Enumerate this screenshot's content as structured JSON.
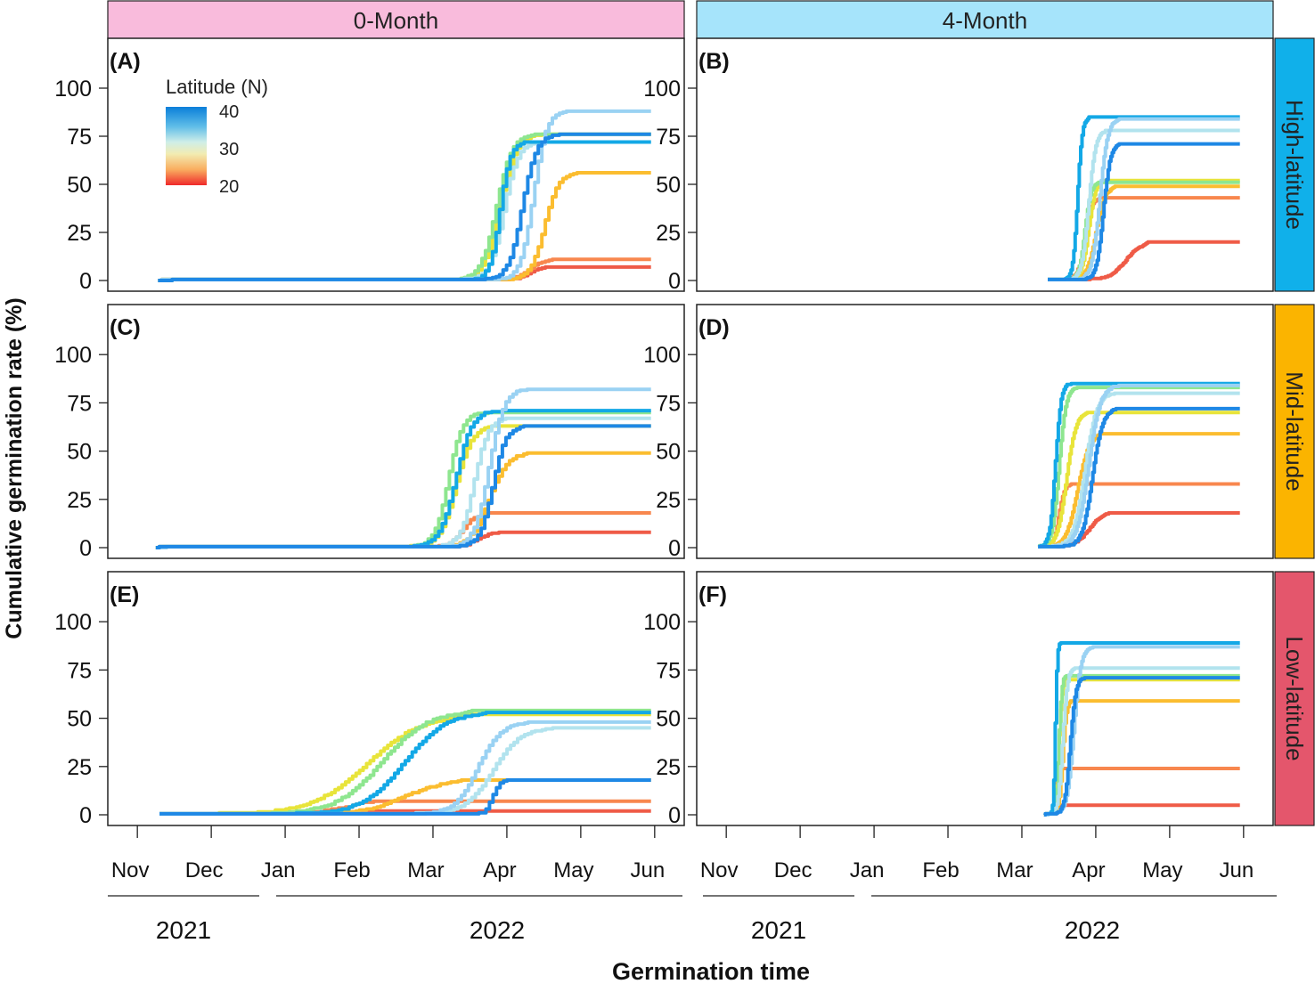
{
  "figure": {
    "ylabel": "Cumulative germination rate (%)",
    "xlabel": "Germination time",
    "legend": {
      "title": "Latitude (N)",
      "ticks": [
        "40",
        "30",
        "20"
      ]
    },
    "columns": [
      {
        "label": "0-Month",
        "color": "#f9bbdc"
      },
      {
        "label": "4-Month",
        "color": "#a6e4fb"
      }
    ],
    "rows": [
      {
        "label": "High-latitude",
        "color": "#10b0ea"
      },
      {
        "label": "Mid-latitude",
        "color": "#fbb400"
      },
      {
        "label": "Low-latitude",
        "color": "#e4566c"
      }
    ],
    "months": [
      "Nov",
      "Dec",
      "Jan",
      "Feb",
      "Mar",
      "Apr",
      "May",
      "Jun"
    ],
    "years": [
      "2021",
      "2022"
    ],
    "yticks": [
      "0",
      "25",
      "50",
      "75",
      "100"
    ]
  },
  "chart_data": [
    {
      "type": "line",
      "panel": "(A)",
      "column": "0-Month",
      "row": "High-latitude",
      "x_unit": "months since Nov 1 2021",
      "ylim": [
        0,
        125
      ],
      "xlim": [
        -0.4,
        7.4
      ],
      "series": [
        {
          "name": "lat-40a",
          "color": "#1e88e5",
          "start": 0.28,
          "end": 6.95,
          "final": 76,
          "mid": 5.2,
          "width": 0.3
        },
        {
          "name": "lat-39",
          "color": "#9ad2f3",
          "start": 0.28,
          "end": 6.95,
          "final": 88,
          "mid": 5.35,
          "width": 0.28
        },
        {
          "name": "lat-38",
          "color": "#13a8e6",
          "start": 0.28,
          "end": 6.95,
          "final": 72,
          "mid": 4.9,
          "width": 0.22
        },
        {
          "name": "lat-36",
          "color": "#b2e3ee",
          "start": 0.28,
          "end": 6.95,
          "final": 72,
          "mid": 4.95,
          "width": 0.3
        },
        {
          "name": "lat-33",
          "color": "#8ee68f",
          "start": 0.28,
          "end": 6.95,
          "final": 76,
          "mid": 4.85,
          "width": 0.33
        },
        {
          "name": "lat-31",
          "color": "#e8e43a",
          "start": 0.28,
          "end": 6.95,
          "final": 76,
          "mid": 4.9,
          "width": 0.35
        },
        {
          "name": "lat-27",
          "color": "#fbbd30",
          "start": 0.28,
          "end": 6.95,
          "final": 56,
          "mid": 5.5,
          "width": 0.3
        },
        {
          "name": "lat-24",
          "color": "#f8874e",
          "start": 0.28,
          "end": 6.95,
          "final": 11,
          "mid": 5.3,
          "width": 0.35
        },
        {
          "name": "lat-21",
          "color": "#ef5b47",
          "start": 0.28,
          "end": 6.95,
          "final": 7,
          "mid": 5.3,
          "width": 0.3
        }
      ]
    },
    {
      "type": "line",
      "panel": "(B)",
      "column": "4-Month",
      "row": "High-latitude",
      "x_unit": "months since Nov 1 2021",
      "ylim": [
        0,
        125
      ],
      "xlim": [
        -0.4,
        7.4
      ],
      "series": [
        {
          "name": "lat-40a",
          "color": "#1e88e5",
          "start": 4.35,
          "end": 6.95,
          "final": 71,
          "mid": 5.1,
          "width": 0.15
        },
        {
          "name": "lat-39",
          "color": "#9ad2f3",
          "start": 4.35,
          "end": 6.95,
          "final": 84,
          "mid": 5.05,
          "width": 0.17
        },
        {
          "name": "lat-38",
          "color": "#13a8e6",
          "start": 4.35,
          "end": 6.95,
          "final": 85,
          "mid": 4.75,
          "width": 0.1
        },
        {
          "name": "lat-36",
          "color": "#b2e3ee",
          "start": 4.35,
          "end": 6.95,
          "final": 78,
          "mid": 4.9,
          "width": 0.15
        },
        {
          "name": "lat-33",
          "color": "#8ee68f",
          "start": 4.35,
          "end": 6.95,
          "final": 51,
          "mid": 4.85,
          "width": 0.13
        },
        {
          "name": "lat-31",
          "color": "#e8e43a",
          "start": 4.35,
          "end": 6.95,
          "final": 52,
          "mid": 4.9,
          "width": 0.15
        },
        {
          "name": "lat-27",
          "color": "#fbbd30",
          "start": 4.35,
          "end": 6.95,
          "final": 49,
          "mid": 5.0,
          "width": 0.2
        },
        {
          "name": "lat-24",
          "color": "#f8874e",
          "start": 4.35,
          "end": 6.95,
          "final": 43,
          "mid": 4.85,
          "width": 0.15
        },
        {
          "name": "lat-21",
          "color": "#ef5b47",
          "start": 4.35,
          "end": 6.95,
          "final": 20,
          "mid": 5.4,
          "width": 0.35
        }
      ]
    },
    {
      "type": "line",
      "panel": "(C)",
      "column": "0-Month",
      "row": "Mid-latitude",
      "x_unit": "months since Nov 1 2021",
      "ylim": [
        0,
        125
      ],
      "xlim": [
        -0.4,
        7.4
      ],
      "series": [
        {
          "name": "lat-40a",
          "color": "#1e88e5",
          "start": 0.25,
          "end": 6.95,
          "final": 63,
          "mid": 4.8,
          "width": 0.28
        },
        {
          "name": "lat-39",
          "color": "#9ad2f3",
          "start": 0.25,
          "end": 6.95,
          "final": 82,
          "mid": 4.75,
          "width": 0.32
        },
        {
          "name": "lat-38",
          "color": "#13a8e6",
          "start": 0.25,
          "end": 6.95,
          "final": 71,
          "mid": 4.3,
          "width": 0.35
        },
        {
          "name": "lat-36",
          "color": "#b2e3ee",
          "start": 0.25,
          "end": 6.95,
          "final": 67,
          "mid": 4.55,
          "width": 0.3
        },
        {
          "name": "lat-33",
          "color": "#8ee68f",
          "start": 0.25,
          "end": 6.95,
          "final": 70,
          "mid": 4.2,
          "width": 0.3
        },
        {
          "name": "lat-31",
          "color": "#e8e43a",
          "start": 0.25,
          "end": 6.95,
          "final": 63,
          "mid": 4.3,
          "width": 0.35
        },
        {
          "name": "lat-27",
          "color": "#fbbd30",
          "start": 0.25,
          "end": 6.95,
          "final": 49,
          "mid": 4.75,
          "width": 0.4
        },
        {
          "name": "lat-24",
          "color": "#f8874e",
          "start": 0.25,
          "end": 6.95,
          "final": 18,
          "mid": 4.4,
          "width": 0.3
        },
        {
          "name": "lat-21",
          "color": "#ef5b47",
          "start": 0.25,
          "end": 6.95,
          "final": 8,
          "mid": 4.6,
          "width": 0.3
        }
      ]
    },
    {
      "type": "line",
      "panel": "(D)",
      "column": "4-Month",
      "row": "Mid-latitude",
      "x_unit": "months since Nov 1 2021",
      "ylim": [
        0,
        125
      ],
      "xlim": [
        -0.4,
        7.4
      ],
      "series": [
        {
          "name": "lat-40a",
          "color": "#1e88e5",
          "start": 4.22,
          "end": 6.95,
          "final": 72,
          "mid": 4.95,
          "width": 0.22
        },
        {
          "name": "lat-39",
          "color": "#9ad2f3",
          "start": 4.22,
          "end": 6.95,
          "final": 84,
          "mid": 4.9,
          "width": 0.25
        },
        {
          "name": "lat-38",
          "color": "#13a8e6",
          "start": 4.22,
          "end": 6.95,
          "final": 85,
          "mid": 4.45,
          "width": 0.12
        },
        {
          "name": "lat-36",
          "color": "#b2e3ee",
          "start": 4.22,
          "end": 6.95,
          "final": 80,
          "mid": 4.85,
          "width": 0.25
        },
        {
          "name": "lat-33",
          "color": "#8ee68f",
          "start": 4.22,
          "end": 6.95,
          "final": 83,
          "mid": 4.5,
          "width": 0.15
        },
        {
          "name": "lat-31",
          "color": "#e8e43a",
          "start": 4.22,
          "end": 6.95,
          "final": 70,
          "mid": 4.6,
          "width": 0.2
        },
        {
          "name": "lat-27",
          "color": "#fbbd30",
          "start": 4.22,
          "end": 6.95,
          "final": 59,
          "mid": 4.75,
          "width": 0.25
        },
        {
          "name": "lat-24",
          "color": "#f8874e",
          "start": 4.22,
          "end": 6.95,
          "final": 33,
          "mid": 4.5,
          "width": 0.12
        },
        {
          "name": "lat-21",
          "color": "#ef5b47",
          "start": 4.22,
          "end": 6.95,
          "final": 18,
          "mid": 4.9,
          "width": 0.3
        }
      ]
    },
    {
      "type": "line",
      "panel": "(E)",
      "column": "0-Month",
      "row": "Low-latitude",
      "x_unit": "months since Nov 1 2021",
      "ylim": [
        0,
        125
      ],
      "xlim": [
        -0.4,
        7.4
      ],
      "series": [
        {
          "name": "lat-40a",
          "color": "#1e88e5",
          "start": 0.3,
          "end": 6.95,
          "final": 18,
          "mid": 4.8,
          "width": 0.15
        },
        {
          "name": "lat-39",
          "color": "#9ad2f3",
          "start": 0.3,
          "end": 6.95,
          "final": 48,
          "mid": 4.6,
          "width": 0.5
        },
        {
          "name": "lat-38",
          "color": "#13a8e6",
          "start": 0.3,
          "end": 6.95,
          "final": 53,
          "mid": 3.6,
          "width": 0.9
        },
        {
          "name": "lat-36",
          "color": "#b2e3ee",
          "start": 0.3,
          "end": 6.95,
          "final": 45,
          "mid": 4.8,
          "width": 0.6
        },
        {
          "name": "lat-33",
          "color": "#8ee68f",
          "start": 0.3,
          "end": 6.95,
          "final": 54,
          "mid": 3.3,
          "width": 1.0
        },
        {
          "name": "lat-31",
          "color": "#e8e43a",
          "start": 0.3,
          "end": 6.95,
          "final": 52,
          "mid": 3.1,
          "width": 1.2
        },
        {
          "name": "lat-27",
          "color": "#fbbd30",
          "start": 0.3,
          "end": 6.95,
          "final": 18,
          "mid": 3.6,
          "width": 0.9
        },
        {
          "name": "lat-24",
          "color": "#f8874e",
          "start": 0.3,
          "end": 6.95,
          "final": 7,
          "mid": 2.8,
          "width": 0.8
        },
        {
          "name": "lat-21",
          "color": "#ef5b47",
          "start": 0.3,
          "end": 6.95,
          "final": 2,
          "mid": 3.0,
          "width": 1.0
        }
      ]
    },
    {
      "type": "line",
      "panel": "(F)",
      "column": "4-Month",
      "row": "Low-latitude",
      "x_unit": "months since Nov 1 2021",
      "ylim": [
        0,
        125
      ],
      "xlim": [
        -0.4,
        7.4
      ],
      "series": [
        {
          "name": "lat-40a",
          "color": "#1e88e5",
          "start": 4.3,
          "end": 6.95,
          "final": 71,
          "mid": 4.65,
          "width": 0.12
        },
        {
          "name": "lat-39",
          "color": "#9ad2f3",
          "start": 4.3,
          "end": 6.95,
          "final": 87,
          "mid": 4.7,
          "width": 0.15
        },
        {
          "name": "lat-38",
          "color": "#13a8e6",
          "start": 4.3,
          "end": 6.95,
          "final": 89,
          "mid": 4.45,
          "width": 0.04
        },
        {
          "name": "lat-36",
          "color": "#b2e3ee",
          "start": 4.3,
          "end": 6.95,
          "final": 76,
          "mid": 4.55,
          "width": 0.1
        },
        {
          "name": "lat-33",
          "color": "#8ee68f",
          "start": 4.3,
          "end": 6.95,
          "final": 72,
          "mid": 4.5,
          "width": 0.06
        },
        {
          "name": "lat-31",
          "color": "#e8e43a",
          "start": 4.3,
          "end": 6.95,
          "final": 70,
          "mid": 4.5,
          "width": 0.07
        },
        {
          "name": "lat-27",
          "color": "#fbbd30",
          "start": 4.3,
          "end": 6.95,
          "final": 59,
          "mid": 4.55,
          "width": 0.08
        },
        {
          "name": "lat-24",
          "color": "#f8874e",
          "start": 4.3,
          "end": 6.95,
          "final": 24,
          "mid": 4.45,
          "width": 0.04
        },
        {
          "name": "lat-21",
          "color": "#ef5b47",
          "start": 4.3,
          "end": 6.95,
          "final": 5,
          "mid": 4.5,
          "width": 0.05
        }
      ]
    }
  ]
}
